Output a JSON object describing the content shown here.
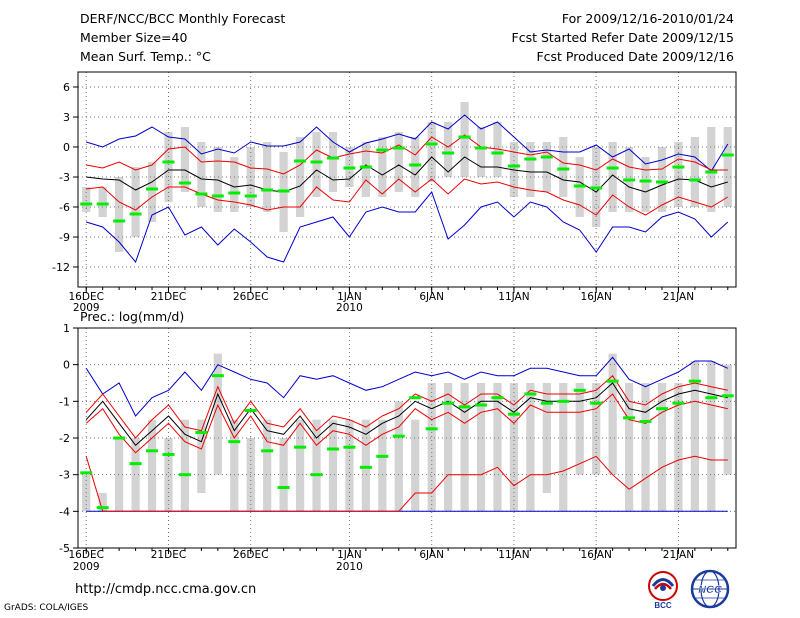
{
  "header": {
    "title": "DERF/NCC/BCC Monthly Forecast",
    "member_size": "Member Size=40",
    "variable": "Mean Surf. Temp.: °C",
    "period": "For 2009/12/16-2010/01/24",
    "fcst_started": "Fcst Started Refer Date 2009/12/15",
    "fcst_produced": "Fcst Produced Date 2009/12/16"
  },
  "footer": {
    "url": "http://cmdp.ncc.cma.gov.cn",
    "credit": "GrADS: COLA/IGES",
    "logo_left": "BCC",
    "logo_right": "NCC"
  },
  "colors": {
    "box": "#d3d3d3",
    "median": "#00ee00",
    "mean": "#000000",
    "inner": "#ee0000",
    "outer": "#0000cc",
    "grid": "#777777"
  },
  "chart_data": [
    {
      "type": "box-spread",
      "title": "Mean Surf. Temp.: °C",
      "ylim": [
        -14,
        7.5
      ],
      "yticks": [
        6,
        3,
        0,
        -3,
        -6,
        -9,
        -12
      ],
      "x_tick_labels": [
        {
          "day": 1,
          "label": "16DEC",
          "sub": "2009"
        },
        {
          "day": 6,
          "label": "21DEC",
          "sub": ""
        },
        {
          "day": 11,
          "label": "26DEC",
          "sub": ""
        },
        {
          "day": 17,
          "label": "1JAN",
          "sub": "2010"
        },
        {
          "day": 22,
          "label": "6JAN",
          "sub": ""
        },
        {
          "day": 27,
          "label": "11JAN",
          "sub": ""
        },
        {
          "day": 32,
          "label": "16JAN",
          "sub": ""
        },
        {
          "day": 37,
          "label": "21JAN",
          "sub": ""
        }
      ],
      "days": [
        1,
        2,
        3,
        4,
        5,
        6,
        7,
        8,
        9,
        10,
        11,
        12,
        13,
        14,
        15,
        16,
        17,
        18,
        19,
        20,
        21,
        22,
        23,
        24,
        25,
        26,
        27,
        28,
        29,
        30,
        31,
        32,
        33,
        34,
        35,
        36,
        37,
        38,
        39,
        40
      ],
      "box_low": [
        -6.5,
        -7.0,
        -10.5,
        -9.0,
        -7.5,
        -5.5,
        -4.5,
        -6.0,
        -6.5,
        -6.5,
        -6.0,
        -6.5,
        -8.5,
        -7.0,
        -5.0,
        -4.5,
        -4.0,
        -5.0,
        -5.0,
        -4.5,
        -5.0,
        -3.5,
        -3.0,
        -3.0,
        -3.0,
        -3.0,
        -5.0,
        -5.0,
        -4.5,
        -5.0,
        -7.0,
        -8.0,
        -6.5,
        -6.5,
        -6.5,
        -6.5,
        -6.0,
        -6.0,
        -6.5,
        -6.0
      ],
      "box_high": [
        -4.0,
        -4.0,
        -3.0,
        -2.0,
        -1.5,
        1.5,
        2.0,
        0.5,
        0.0,
        -1.0,
        0.0,
        0.5,
        -0.5,
        1.0,
        1.5,
        1.5,
        0.0,
        0.5,
        1.0,
        1.5,
        1.0,
        2.5,
        2.5,
        4.5,
        2.0,
        2.5,
        0.5,
        0.5,
        0.5,
        1.0,
        -1.0,
        0.0,
        0.5,
        0.0,
        -1.0,
        0.0,
        0.5,
        1.0,
        2.0,
        2.0
      ],
      "median": [
        -5.7,
        -5.7,
        -7.4,
        -6.7,
        -4.2,
        -1.5,
        -3.6,
        -4.7,
        -4.9,
        -4.6,
        -4.9,
        -4.3,
        -4.4,
        -1.4,
        -1.5,
        -1.1,
        -2.1,
        -2.0,
        -0.3,
        -0.1,
        -1.8,
        0.3,
        -0.6,
        1.0,
        -0.1,
        -0.6,
        -1.9,
        -1.2,
        -1.0,
        -2.2,
        -3.9,
        -4.1,
        -2.1,
        -3.3,
        -3.4,
        -3.5,
        -2.0,
        -3.3,
        -2.5,
        -0.8
      ],
      "mean": [
        -3.0,
        -3.2,
        -3.3,
        -4.3,
        -3.5,
        -2.3,
        -2.3,
        -3.2,
        -3.3,
        -4.0,
        -3.8,
        -4.3,
        -4.5,
        -3.9,
        -2.3,
        -3.3,
        -3.2,
        -1.8,
        -2.8,
        -1.8,
        -2.8,
        -1.0,
        -2.5,
        -1.0,
        -2.0,
        -2.0,
        -2.3,
        -2.5,
        -2.5,
        -3.3,
        -3.5,
        -4.5,
        -2.8,
        -4.0,
        -4.5,
        -3.8,
        -3.2,
        -3.3,
        -4.0,
        -3.5
      ],
      "inner_upper": [
        -1.8,
        -2.1,
        -1.5,
        -2.3,
        -1.8,
        -0.2,
        0.0,
        -1.5,
        -1.4,
        -1.5,
        -2.1,
        -2.2,
        -2.7,
        -1.8,
        -0.3,
        -1.1,
        -0.7,
        -0.4,
        -0.6,
        0.2,
        -0.8,
        1.0,
        0.0,
        1.2,
        0.0,
        -0.2,
        -0.5,
        -0.8,
        -0.5,
        -1.6,
        -1.8,
        -2.3,
        -1.2,
        -2.0,
        -2.3,
        -2.2,
        -1.2,
        -1.5,
        -2.3,
        -2.3
      ],
      "inner_lower": [
        -4.2,
        -4.0,
        -5.5,
        -6.3,
        -5.0,
        -4.0,
        -4.0,
        -4.7,
        -5.3,
        -5.5,
        -5.8,
        -6.3,
        -6.0,
        -6.0,
        -4.0,
        -5.3,
        -5.5,
        -3.3,
        -4.7,
        -3.2,
        -4.5,
        -3.2,
        -4.7,
        -3.2,
        -3.7,
        -3.5,
        -4.0,
        -4.3,
        -4.5,
        -5.3,
        -5.8,
        -6.8,
        -4.8,
        -6.0,
        -6.8,
        -5.8,
        -5.0,
        -5.5,
        -6.0,
        -5.0
      ],
      "outer_upper": [
        0.5,
        0.0,
        0.8,
        1.1,
        2.0,
        1.0,
        0.8,
        -0.7,
        -0.2,
        -0.6,
        0.5,
        0.1,
        0.1,
        0.5,
        2.0,
        0.5,
        -0.5,
        0.4,
        0.8,
        1.3,
        0.8,
        2.5,
        1.8,
        3.2,
        1.8,
        2.5,
        1.0,
        -0.5,
        -0.3,
        -0.5,
        -0.5,
        0.2,
        -1.0,
        -0.2,
        -1.7,
        -1.3,
        -0.7,
        -1.0,
        -2.4,
        0.3
      ],
      "outer_lower": [
        -7.5,
        -8.0,
        -9.5,
        -11.5,
        -6.8,
        -6.0,
        -8.8,
        -8.0,
        -9.8,
        -8.2,
        -9.5,
        -11.0,
        -11.5,
        -8.0,
        -7.5,
        -7.0,
        -9.0,
        -6.5,
        -6.0,
        -6.5,
        -6.5,
        -4.5,
        -9.2,
        -7.8,
        -6.0,
        -5.5,
        -7.0,
        -5.5,
        -6.0,
        -7.5,
        -8.3,
        -10.5,
        -8.0,
        -8.0,
        -8.5,
        -7.0,
        -6.5,
        -7.2,
        -9.0,
        -7.5
      ]
    },
    {
      "type": "box-spread",
      "title": "Prec.: log(mm/d)",
      "ylim": [
        -5,
        1
      ],
      "yticks": [
        1,
        0,
        -1,
        -2,
        -3,
        -4,
        -5
      ],
      "x_tick_labels": [
        {
          "day": 1,
          "label": "16DEC",
          "sub": "2009"
        },
        {
          "day": 6,
          "label": "21DEC",
          "sub": ""
        },
        {
          "day": 11,
          "label": "26DEC",
          "sub": ""
        },
        {
          "day": 17,
          "label": "1JAN",
          "sub": "2010"
        },
        {
          "day": 22,
          "label": "6JAN",
          "sub": ""
        },
        {
          "day": 27,
          "label": "11JAN",
          "sub": ""
        },
        {
          "day": 32,
          "label": "16JAN",
          "sub": ""
        },
        {
          "day": 37,
          "label": "21JAN",
          "sub": ""
        }
      ],
      "days": [
        1,
        2,
        3,
        4,
        5,
        6,
        7,
        8,
        9,
        10,
        11,
        12,
        13,
        14,
        15,
        16,
        17,
        18,
        19,
        20,
        21,
        22,
        23,
        24,
        25,
        26,
        27,
        28,
        29,
        30,
        31,
        32,
        33,
        34,
        35,
        36,
        37,
        38,
        39,
        40
      ],
      "box_low": [
        -4.0,
        -4.0,
        -4.0,
        -4.0,
        -4.0,
        -4.0,
        -4.0,
        -3.5,
        -3.0,
        -4.0,
        -4.0,
        -4.0,
        -4.0,
        -4.0,
        -4.0,
        -4.0,
        -4.0,
        -4.0,
        -4.0,
        -4.0,
        -4.0,
        -4.0,
        -4.0,
        -4.0,
        -4.0,
        -4.0,
        -4.0,
        -4.0,
        -3.5,
        -4.0,
        -3.0,
        -3.0,
        -3.0,
        -4.0,
        -4.0,
        -4.0,
        -4.0,
        -4.0,
        -4.0,
        -3.0
      ],
      "box_high": [
        -3.0,
        -3.5,
        -2.0,
        -2.0,
        -1.5,
        -2.0,
        -1.5,
        -1.5,
        0.3,
        -1.5,
        -2.0,
        -1.5,
        -2.0,
        -1.5,
        -1.5,
        -1.5,
        -1.5,
        -1.5,
        -1.5,
        -1.0,
        -1.5,
        -0.5,
        -0.5,
        -0.5,
        -0.5,
        -0.5,
        -0.5,
        -0.5,
        -0.5,
        -0.5,
        -0.5,
        -0.5,
        0.3,
        -0.5,
        -0.5,
        -0.5,
        -0.5,
        0.1,
        0.1,
        0.0
      ],
      "median": [
        -2.95,
        -3.9,
        -2.0,
        -2.7,
        -2.35,
        -2.45,
        -3.0,
        -1.85,
        -0.3,
        -2.1,
        -1.25,
        -2.35,
        -3.35,
        -2.25,
        -3.0,
        -2.3,
        -2.25,
        -2.8,
        -2.5,
        -1.95,
        -0.9,
        -1.75,
        -1.05,
        -1.15,
        -1.1,
        -0.9,
        -1.35,
        -0.8,
        -1.05,
        -1.0,
        -0.7,
        -1.05,
        -0.45,
        -1.45,
        -1.55,
        -1.2,
        -1.05,
        -0.45,
        -0.9,
        -0.85
      ],
      "mean": [
        -1.5,
        -1.0,
        -1.6,
        -2.2,
        -1.8,
        -1.4,
        -1.9,
        -2.1,
        -0.8,
        -1.8,
        -1.2,
        -1.8,
        -1.9,
        -1.4,
        -2.0,
        -1.6,
        -1.7,
        -1.9,
        -1.6,
        -1.4,
        -1.0,
        -1.2,
        -1.0,
        -1.3,
        -1.0,
        -1.0,
        -1.3,
        -0.9,
        -1.0,
        -1.0,
        -1.0,
        -0.9,
        -0.5,
        -1.2,
        -1.3,
        -1.0,
        -0.8,
        -0.7,
        -0.8,
        -0.9
      ],
      "inner_upper": [
        -1.3,
        -0.8,
        -1.4,
        -2.0,
        -1.5,
        -1.1,
        -1.7,
        -1.8,
        -0.6,
        -1.6,
        -1.0,
        -1.6,
        -1.7,
        -1.2,
        -1.8,
        -1.4,
        -1.5,
        -1.7,
        -1.4,
        -1.2,
        -0.8,
        -1.0,
        -0.8,
        -1.1,
        -0.8,
        -0.8,
        -1.1,
        -0.7,
        -0.8,
        -0.8,
        -0.8,
        -0.7,
        -0.3,
        -1.0,
        -1.1,
        -0.8,
        -0.6,
        -0.5,
        -0.6,
        -0.7
      ],
      "inner_lower": [
        -1.6,
        -1.2,
        -1.9,
        -2.4,
        -2.0,
        -1.6,
        -2.1,
        -2.3,
        -1.1,
        -2.0,
        -1.4,
        -2.1,
        -2.2,
        -1.6,
        -2.2,
        -1.8,
        -1.9,
        -2.2,
        -1.9,
        -1.7,
        -1.2,
        -1.5,
        -1.3,
        -1.6,
        -1.3,
        -1.2,
        -1.6,
        -1.1,
        -1.3,
        -1.3,
        -1.3,
        -1.2,
        -0.8,
        -1.5,
        -1.6,
        -1.3,
        -1.1,
        -1.0,
        -1.1,
        -1.2
      ],
      "inner_bottom": [
        -2.5,
        -4.0,
        -4.0,
        -4.0,
        -4.0,
        -4.0,
        -4.0,
        -4.0,
        -4.0,
        -4.0,
        -4.0,
        -4.0,
        -4.0,
        -4.0,
        -4.0,
        -4.0,
        -4.0,
        -4.0,
        -4.0,
        -4.0,
        -3.5,
        -3.5,
        -3.0,
        -3.0,
        -3.0,
        -2.8,
        -3.3,
        -3.0,
        -3.0,
        -2.9,
        -2.7,
        -2.5,
        -3.0,
        -3.4,
        -3.1,
        -2.8,
        -2.6,
        -2.5,
        -2.6,
        -2.6
      ],
      "outer_upper": [
        -0.1,
        -0.8,
        -0.5,
        -1.4,
        -0.9,
        -0.7,
        -0.2,
        -0.7,
        0.0,
        -0.2,
        -0.4,
        -0.5,
        -0.9,
        -0.3,
        -0.4,
        -0.3,
        -0.5,
        -0.7,
        -0.6,
        -0.4,
        -0.2,
        -0.3,
        -0.2,
        -0.4,
        -0.2,
        -0.3,
        -0.3,
        -0.1,
        -0.1,
        -0.2,
        -0.3,
        -0.3,
        0.2,
        -0.4,
        -0.6,
        -0.4,
        -0.2,
        0.1,
        0.1,
        -0.1
      ],
      "outer_lower": [
        -4.0,
        -4.0,
        -4.0,
        -4.0,
        -4.0,
        -4.0,
        -4.0,
        -4.0,
        -4.0,
        -4.0,
        -4.0,
        -4.0,
        -4.0,
        -4.0,
        -4.0,
        -4.0,
        -4.0,
        -4.0,
        -4.0,
        -4.0,
        -4.0,
        -4.0,
        -4.0,
        -4.0,
        -4.0,
        -4.0,
        -4.0,
        -4.0,
        -4.0,
        -4.0,
        -4.0,
        -4.0,
        -4.0,
        -4.0,
        -4.0,
        -4.0,
        -4.0,
        -4.0,
        -4.0,
        -4.0
      ]
    }
  ]
}
